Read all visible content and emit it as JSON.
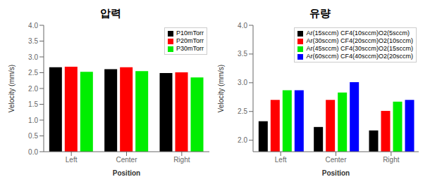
{
  "chart_data": [
    {
      "type": "bar",
      "title": "압력",
      "xlabel": "Position",
      "ylabel": "Velocity (mm/s)",
      "categories": [
        "Left",
        "Center",
        "Right"
      ],
      "series": [
        {
          "name": "P10mTorr",
          "color": "#000000",
          "values": [
            2.67,
            2.61,
            2.49
          ]
        },
        {
          "name": "P20mTorr",
          "color": "#ff0000",
          "values": [
            2.69,
            2.67,
            2.51
          ]
        },
        {
          "name": "P30mTorr",
          "color": "#00ee00",
          "values": [
            2.53,
            2.55,
            2.35
          ]
        }
      ],
      "ylim": [
        0.0,
        4.0
      ],
      "yticks": [
        {
          "value": 0.0,
          "label": "0.0"
        },
        0.5,
        {
          "value": 1.0,
          "label": "1.0"
        },
        1.5,
        {
          "value": 2.0,
          "label": "2.0"
        },
        2.5,
        {
          "value": 3.0,
          "label": "3.0"
        },
        3.5,
        {
          "value": 4.0,
          "label": "4.0"
        }
      ],
      "grid": false,
      "legend": "upper right"
    },
    {
      "type": "bar",
      "title": "유량",
      "xlabel": "Position",
      "ylabel": "Velocity (mm/s)",
      "categories": [
        "Left",
        "Center",
        "Right"
      ],
      "series": [
        {
          "name": "Ar(15sccm) CF4(10sccm)O2(5sccm)",
          "color": "#000000",
          "values": [
            2.33,
            2.23,
            2.17
          ]
        },
        {
          "name": "Ar(30sccm) CF4(20sccm)O2(10sccm)",
          "color": "#ff0000",
          "values": [
            2.7,
            2.7,
            2.51
          ]
        },
        {
          "name": "Ar(45sccm) CF4(30sccm)O2(15sccm)",
          "color": "#00ee00",
          "values": [
            2.87,
            2.83,
            2.67
          ]
        },
        {
          "name": "Ar(60sccm) CF4(40sccm)O2(20sccm)",
          "color": "#0000ff",
          "values": [
            2.87,
            3.01,
            2.7
          ]
        }
      ],
      "ylim": [
        1.8,
        4.0
      ],
      "yticks": [
        {
          "value": 2.0,
          "label": "2.0"
        },
        2.5,
        {
          "value": 3.0,
          "label": "3.0"
        },
        3.5,
        {
          "value": 4.0,
          "label": "4.0"
        }
      ],
      "grid": false,
      "legend": "upper right"
    }
  ]
}
